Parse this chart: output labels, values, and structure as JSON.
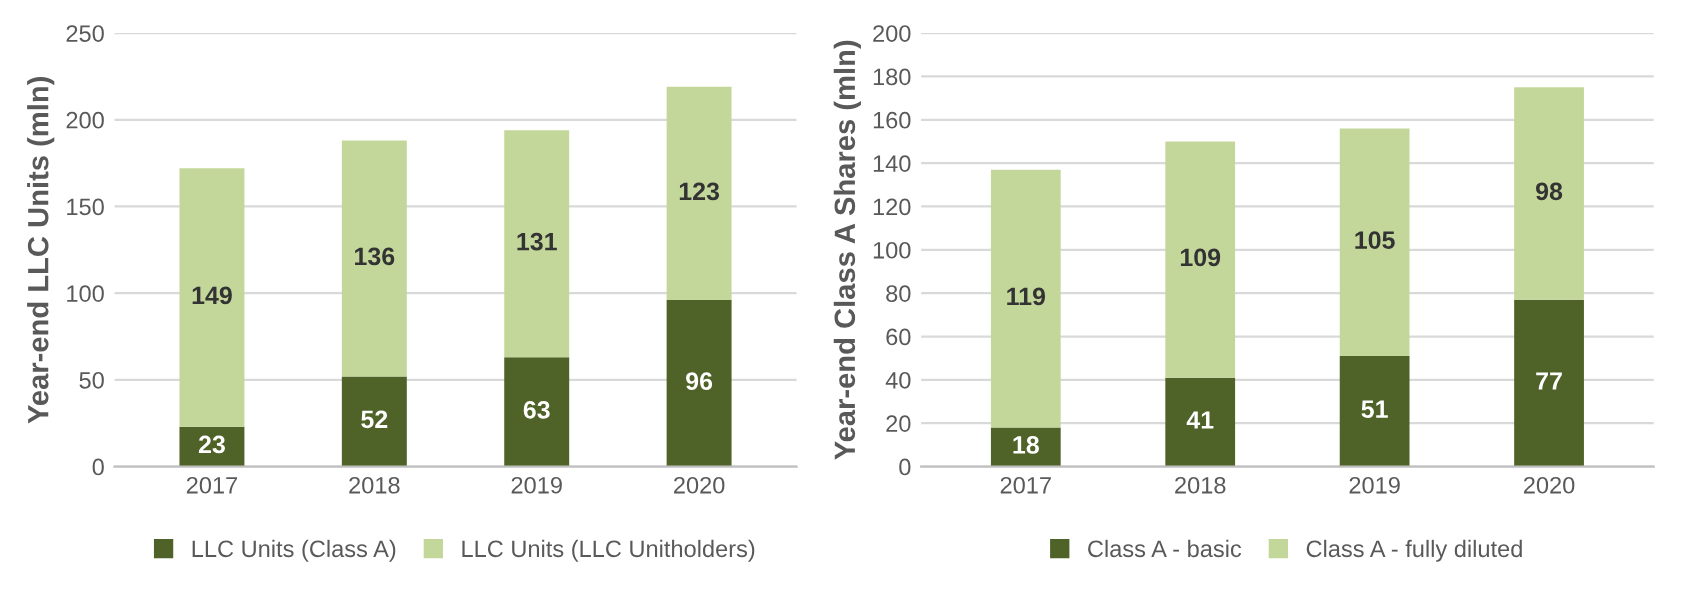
{
  "chart_data": [
    {
      "type": "bar",
      "stacked": true,
      "ylabel": "Year-end LLC Units (mln)",
      "categories": [
        "2017",
        "2018",
        "2019",
        "2020"
      ],
      "ylim": [
        0,
        250
      ],
      "yticks": [
        0,
        50,
        100,
        150,
        200,
        250
      ],
      "grid": "y",
      "legend": "bottom",
      "data_labels": true,
      "series": [
        {
          "name": "LLC Units (Class A)",
          "color": "#4f6228",
          "values": [
            23,
            52,
            63,
            96
          ]
        },
        {
          "name": "LLC Units (LLC Unitholders)",
          "color": "#c4d79b",
          "values": [
            149,
            136,
            131,
            123
          ]
        }
      ]
    },
    {
      "type": "bar",
      "stacked": true,
      "ylabel": "Year-end Class A Shares (mln)",
      "categories": [
        "2017",
        "2018",
        "2019",
        "2020"
      ],
      "ylim": [
        0,
        200
      ],
      "yticks": [
        0,
        20,
        40,
        60,
        80,
        100,
        120,
        140,
        160,
        180,
        200
      ],
      "grid": "y",
      "legend": "bottom",
      "data_labels": true,
      "series": [
        {
          "name": "Class A - basic",
          "color": "#4f6228",
          "values": [
            18,
            41,
            51,
            77
          ]
        },
        {
          "name": "Class A - fully diluted",
          "color": "#c4d79b",
          "values": [
            119,
            109,
            105,
            98
          ]
        }
      ]
    }
  ]
}
